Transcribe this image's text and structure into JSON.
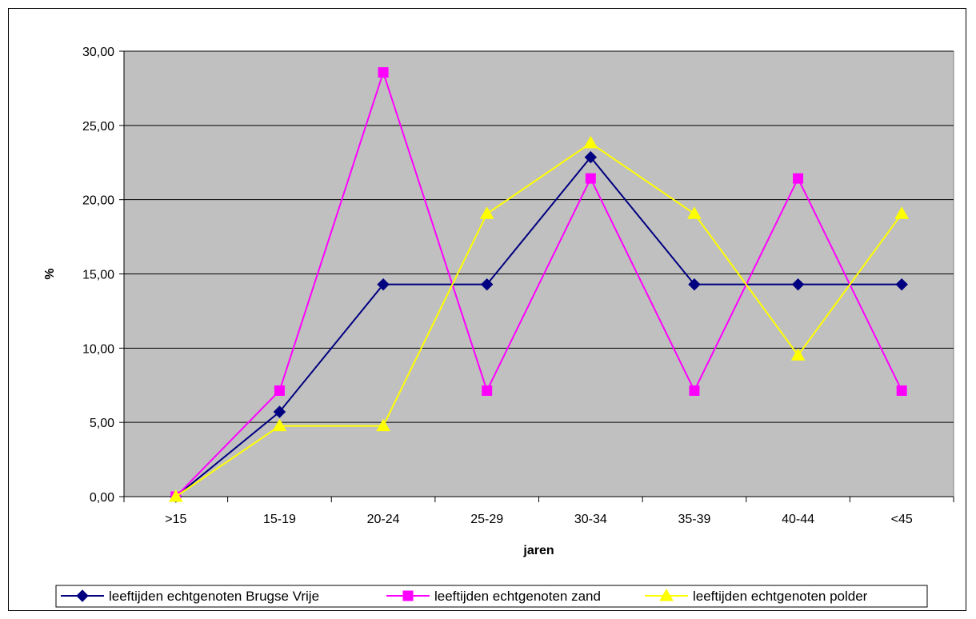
{
  "chart_data": {
    "type": "line",
    "categories": [
      ">15",
      "15-19",
      "20-24",
      "25-29",
      "30-34",
      "35-39",
      "40-44",
      "<45"
    ],
    "series": [
      {
        "name": "leeftijden echtgenoten Brugse Vrije",
        "color": "#000080",
        "marker": "diamond",
        "values": [
          0.0,
          5.71,
          14.29,
          14.29,
          22.86,
          14.29,
          14.29,
          14.29
        ]
      },
      {
        "name": "leeftijden echtgenoten zand",
        "color": "#ff00ff",
        "marker": "square",
        "values": [
          0.0,
          7.14,
          28.57,
          7.14,
          21.43,
          7.14,
          21.43,
          7.14
        ]
      },
      {
        "name": "leeftijden echtgenoten polder",
        "color": "#ffff00",
        "marker": "triangle",
        "values": [
          0.0,
          4.76,
          4.76,
          19.05,
          23.81,
          19.05,
          9.52,
          19.05
        ]
      }
    ],
    "y_ticks": [
      "0,00",
      "5,00",
      "10,00",
      "15,00",
      "20,00",
      "25,00",
      "30,00"
    ],
    "ylim": [
      0,
      30
    ],
    "xlabel": "jaren",
    "ylabel": "%",
    "grid": true,
    "plot_background": "#c0c0c0",
    "legend_position": "bottom"
  }
}
